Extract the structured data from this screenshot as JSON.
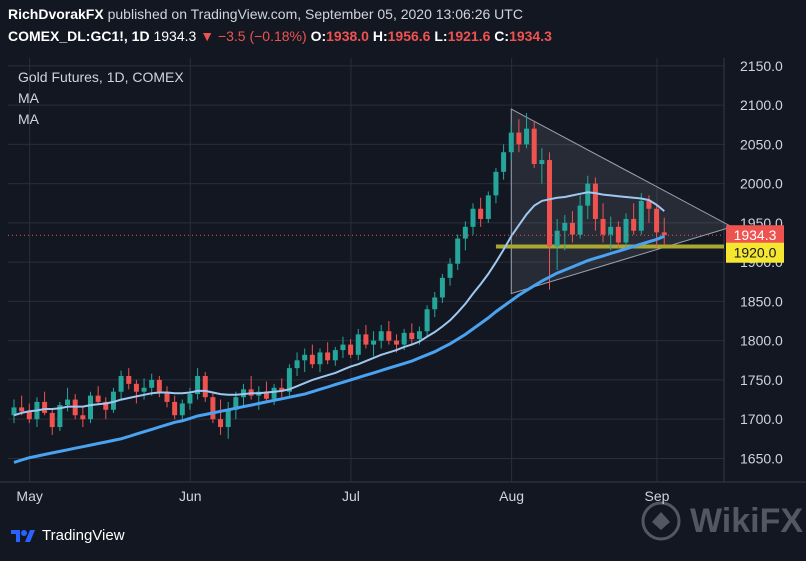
{
  "header": {
    "author": "RichDvorakFX",
    "published_text": "published on TradingView.com, September 05, 2020 13:06:26 UTC",
    "symbol": "COMEX_DL:GC1!, 1D",
    "last": "1934.3",
    "change": "−3.5 (−0.18%)",
    "o_label": "O:",
    "o_value": "1938.0",
    "h_label": "H:",
    "h_value": "1956.6",
    "l_label": "L:",
    "l_value": "1921.6",
    "c_label": "C:",
    "c_value": "1934.3"
  },
  "legend": {
    "title": "Gold Futures, 1D, COMEX",
    "ma1": "MA",
    "ma2": "MA"
  },
  "footer": {
    "brand": "TradingView",
    "watermark": "WikiFX"
  },
  "colors": {
    "background": "#131722",
    "grid": "#2a2e39",
    "up": "#26a69a",
    "down": "#ef5350",
    "ma_fast": "#9fc8f0",
    "ma_slow": "#4aa3f0",
    "support": "#a8a832",
    "triangle": "#9aa0b0",
    "price_tag": "#ef5350",
    "support_tag": "#f5e72f"
  },
  "chart_data": {
    "type": "candlestick",
    "title": "Gold Futures, 1D, COMEX",
    "y_ticks": [
      1650,
      1700,
      1750,
      1800,
      1850,
      1900,
      1950,
      2000,
      2050,
      2100,
      2150
    ],
    "ylim": [
      1620,
      2160
    ],
    "x_ticks": [
      "May",
      "Jun",
      "Jul",
      "Aug",
      "Sep"
    ],
    "last_price": "1934.3",
    "support_level": "1920.0",
    "candles": [
      [
        1705,
        1725,
        1695,
        1715
      ],
      [
        1715,
        1730,
        1705,
        1710
      ],
      [
        1710,
        1720,
        1695,
        1700
      ],
      [
        1700,
        1728,
        1690,
        1722
      ],
      [
        1722,
        1735,
        1705,
        1708
      ],
      [
        1708,
        1712,
        1680,
        1690
      ],
      [
        1690,
        1722,
        1685,
        1718
      ],
      [
        1718,
        1740,
        1710,
        1725
      ],
      [
        1725,
        1732,
        1700,
        1705
      ],
      [
        1705,
        1715,
        1690,
        1700
      ],
      [
        1700,
        1735,
        1695,
        1730
      ],
      [
        1730,
        1742,
        1718,
        1722
      ],
      [
        1722,
        1728,
        1700,
        1712
      ],
      [
        1712,
        1740,
        1708,
        1735
      ],
      [
        1735,
        1762,
        1725,
        1755
      ],
      [
        1755,
        1765,
        1738,
        1745
      ],
      [
        1745,
        1750,
        1720,
        1735
      ],
      [
        1735,
        1752,
        1725,
        1740
      ],
      [
        1740,
        1758,
        1730,
        1750
      ],
      [
        1750,
        1755,
        1728,
        1735
      ],
      [
        1735,
        1742,
        1715,
        1722
      ],
      [
        1722,
        1730,
        1700,
        1705
      ],
      [
        1705,
        1725,
        1698,
        1720
      ],
      [
        1720,
        1740,
        1712,
        1732
      ],
      [
        1732,
        1765,
        1725,
        1755
      ],
      [
        1755,
        1760,
        1722,
        1728
      ],
      [
        1728,
        1735,
        1695,
        1700
      ],
      [
        1700,
        1725,
        1680,
        1690
      ],
      [
        1690,
        1722,
        1675,
        1712
      ],
      [
        1712,
        1735,
        1700,
        1728
      ],
      [
        1728,
        1745,
        1715,
        1738
      ],
      [
        1738,
        1755,
        1725,
        1730
      ],
      [
        1730,
        1742,
        1712,
        1735
      ],
      [
        1735,
        1748,
        1722,
        1726
      ],
      [
        1726,
        1745,
        1718,
        1740
      ],
      [
        1740,
        1752,
        1728,
        1735
      ],
      [
        1735,
        1770,
        1730,
        1765
      ],
      [
        1765,
        1785,
        1755,
        1775
      ],
      [
        1775,
        1790,
        1760,
        1782
      ],
      [
        1782,
        1795,
        1765,
        1770
      ],
      [
        1770,
        1790,
        1760,
        1785
      ],
      [
        1785,
        1798,
        1770,
        1775
      ],
      [
        1775,
        1792,
        1768,
        1788
      ],
      [
        1788,
        1805,
        1778,
        1795
      ],
      [
        1795,
        1802,
        1778,
        1782
      ],
      [
        1782,
        1815,
        1775,
        1808
      ],
      [
        1808,
        1820,
        1790,
        1795
      ],
      [
        1795,
        1812,
        1780,
        1800
      ],
      [
        1800,
        1820,
        1790,
        1812
      ],
      [
        1812,
        1825,
        1795,
        1800
      ],
      [
        1800,
        1808,
        1785,
        1795
      ],
      [
        1795,
        1815,
        1788,
        1810
      ],
      [
        1810,
        1822,
        1795,
        1802
      ],
      [
        1802,
        1818,
        1795,
        1812
      ],
      [
        1812,
        1845,
        1805,
        1840
      ],
      [
        1840,
        1862,
        1830,
        1855
      ],
      [
        1855,
        1885,
        1848,
        1880
      ],
      [
        1880,
        1905,
        1870,
        1898
      ],
      [
        1898,
        1935,
        1890,
        1930
      ],
      [
        1930,
        1952,
        1915,
        1945
      ],
      [
        1945,
        1975,
        1935,
        1968
      ],
      [
        1968,
        1982,
        1945,
        1955
      ],
      [
        1955,
        1990,
        1950,
        1985
      ],
      [
        1985,
        2020,
        1975,
        2015
      ],
      [
        2015,
        2050,
        2005,
        2040
      ],
      [
        2040,
        2075,
        2030,
        2065
      ],
      [
        2065,
        2082,
        2040,
        2050
      ],
      [
        2050,
        2090,
        2045,
        2070
      ],
      [
        2070,
        2080,
        2020,
        2025
      ],
      [
        2025,
        2045,
        2000,
        2030
      ],
      [
        2030,
        2040,
        1865,
        1920
      ],
      [
        1920,
        1955,
        1890,
        1940
      ],
      [
        1940,
        1960,
        1915,
        1950
      ],
      [
        1950,
        1965,
        1925,
        1935
      ],
      [
        1935,
        1985,
        1930,
        1972
      ],
      [
        1972,
        2010,
        1955,
        2000
      ],
      [
        2000,
        2008,
        1940,
        1955
      ],
      [
        1955,
        1975,
        1925,
        1935
      ],
      [
        1935,
        1958,
        1915,
        1945
      ],
      [
        1945,
        1952,
        1918,
        1925
      ],
      [
        1925,
        1962,
        1920,
        1955
      ],
      [
        1955,
        1975,
        1935,
        1940
      ],
      [
        1940,
        1988,
        1935,
        1978
      ],
      [
        1978,
        1985,
        1950,
        1968
      ],
      [
        1968,
        1972,
        1920,
        1938
      ],
      [
        1938,
        1956.6,
        1921.6,
        1934.3
      ]
    ],
    "ma_fast": [
      1705,
      1708,
      1710,
      1711,
      1713,
      1713,
      1714,
      1716,
      1716,
      1716,
      1718,
      1719,
      1720,
      1722,
      1725,
      1727,
      1729,
      1731,
      1733,
      1734,
      1734,
      1733,
      1733,
      1734,
      1736,
      1736,
      1734,
      1732,
      1731,
      1731,
      1732,
      1733,
      1733,
      1734,
      1735,
      1736,
      1738,
      1742,
      1746,
      1750,
      1753,
      1756,
      1759,
      1763,
      1767,
      1770,
      1774,
      1778,
      1782,
      1785,
      1788,
      1792,
      1795,
      1799,
      1805,
      1811,
      1818,
      1826,
      1836,
      1847,
      1860,
      1872,
      1885,
      1900,
      1916,
      1933,
      1947,
      1961,
      1972,
      1978,
      1980,
      1982,
      1983,
      1985,
      1987,
      1989,
      1988,
      1986,
      1985,
      1984,
      1983,
      1982,
      1981,
      1979,
      1973,
      1965
    ],
    "ma_slow": [
      1645,
      1648,
      1651,
      1653,
      1655,
      1657,
      1659,
      1661,
      1663,
      1665,
      1667,
      1669,
      1671,
      1673,
      1675,
      1678,
      1681,
      1684,
      1687,
      1690,
      1693,
      1696,
      1698,
      1701,
      1704,
      1706,
      1708,
      1710,
      1712,
      1714,
      1716,
      1718,
      1720,
      1722,
      1724,
      1726,
      1728,
      1730,
      1732,
      1735,
      1738,
      1741,
      1744,
      1747,
      1750,
      1753,
      1756,
      1759,
      1762,
      1765,
      1768,
      1771,
      1774,
      1778,
      1782,
      1786,
      1791,
      1796,
      1802,
      1808,
      1815,
      1822,
      1829,
      1837,
      1844,
      1851,
      1858,
      1864,
      1870,
      1876,
      1881,
      1886,
      1890,
      1894,
      1898,
      1902,
      1905,
      1908,
      1911,
      1914,
      1917,
      1920,
      1923,
      1926,
      1929,
      1933
    ]
  }
}
